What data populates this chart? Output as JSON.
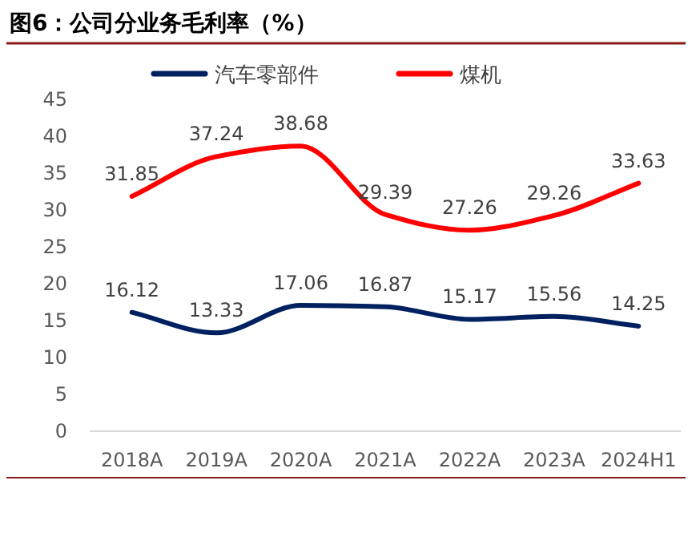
{
  "chart_data": {
    "type": "line",
    "title": "图6：公司分业务毛利率（%）",
    "categories": [
      "2018A",
      "2019A",
      "2020A",
      "2021A",
      "2022A",
      "2023A",
      "2024H1"
    ],
    "series": [
      {
        "name": "汽车零部件",
        "color": "#002060",
        "values": [
          16.12,
          13.33,
          17.06,
          16.87,
          15.17,
          15.56,
          14.25
        ]
      },
      {
        "name": "煤机",
        "color": "#ff0000",
        "values": [
          31.85,
          37.24,
          38.68,
          29.39,
          27.26,
          29.26,
          33.63
        ]
      }
    ],
    "ylim": [
      0,
      45
    ],
    "yticks": [
      0,
      5,
      10,
      15,
      20,
      25,
      30,
      35,
      40,
      45
    ],
    "data_labels": true,
    "legend": "top"
  }
}
